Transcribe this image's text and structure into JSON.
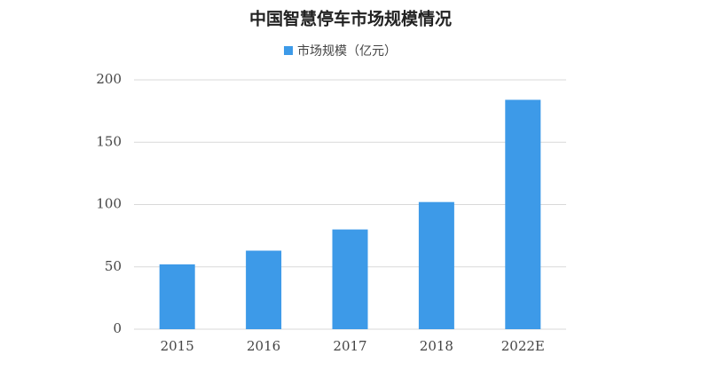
{
  "chart_data": {
    "type": "bar",
    "title": "中国智慧停车市场规模情况",
    "categories": [
      "2015",
      "2016",
      "2017",
      "2018",
      "2022E"
    ],
    "series": [
      {
        "name": "市场规模（亿元）",
        "color": "#3d9ae8",
        "values": [
          52,
          63,
          80,
          102,
          184
        ]
      }
    ],
    "ylim": [
      0,
      200
    ],
    "yticks": [
      0,
      50,
      100,
      150,
      200
    ],
    "grid": true
  }
}
